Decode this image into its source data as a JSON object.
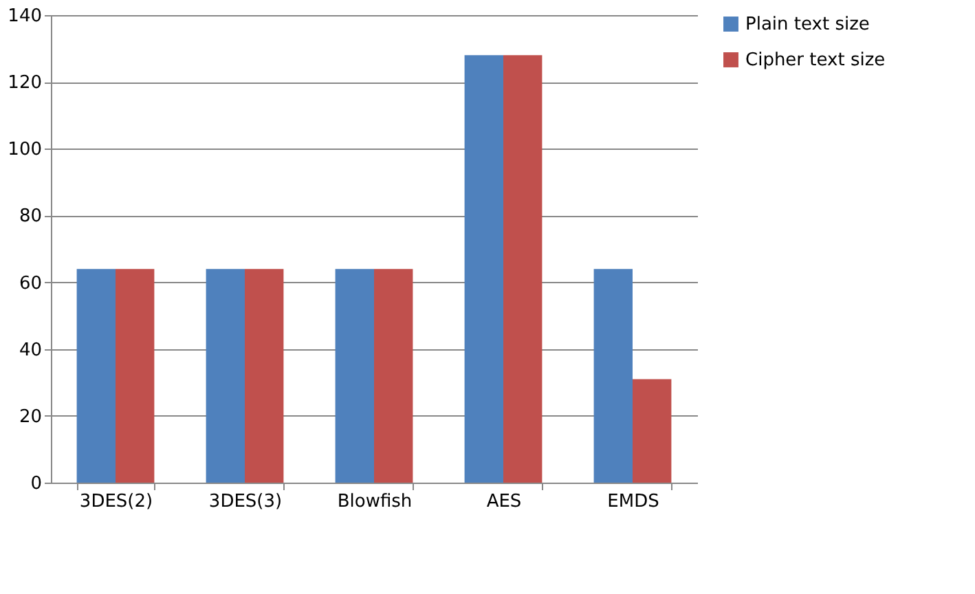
{
  "chart_data": {
    "type": "bar",
    "categories": [
      "3DES(2)",
      "3DES(3)",
      "Blowfish",
      "AES",
      "EMDS"
    ],
    "series": [
      {
        "name": "Plain text size",
        "color": "#4f81bd",
        "values": [
          64,
          64,
          64,
          128,
          64
        ]
      },
      {
        "name": "Cipher text size",
        "color": "#c0504d",
        "values": [
          64,
          64,
          64,
          128,
          31
        ]
      }
    ],
    "ylim": [
      0,
      140
    ],
    "yticks": [
      0,
      20,
      40,
      60,
      80,
      100,
      120,
      140
    ],
    "grid": "y",
    "legend": "right"
  }
}
